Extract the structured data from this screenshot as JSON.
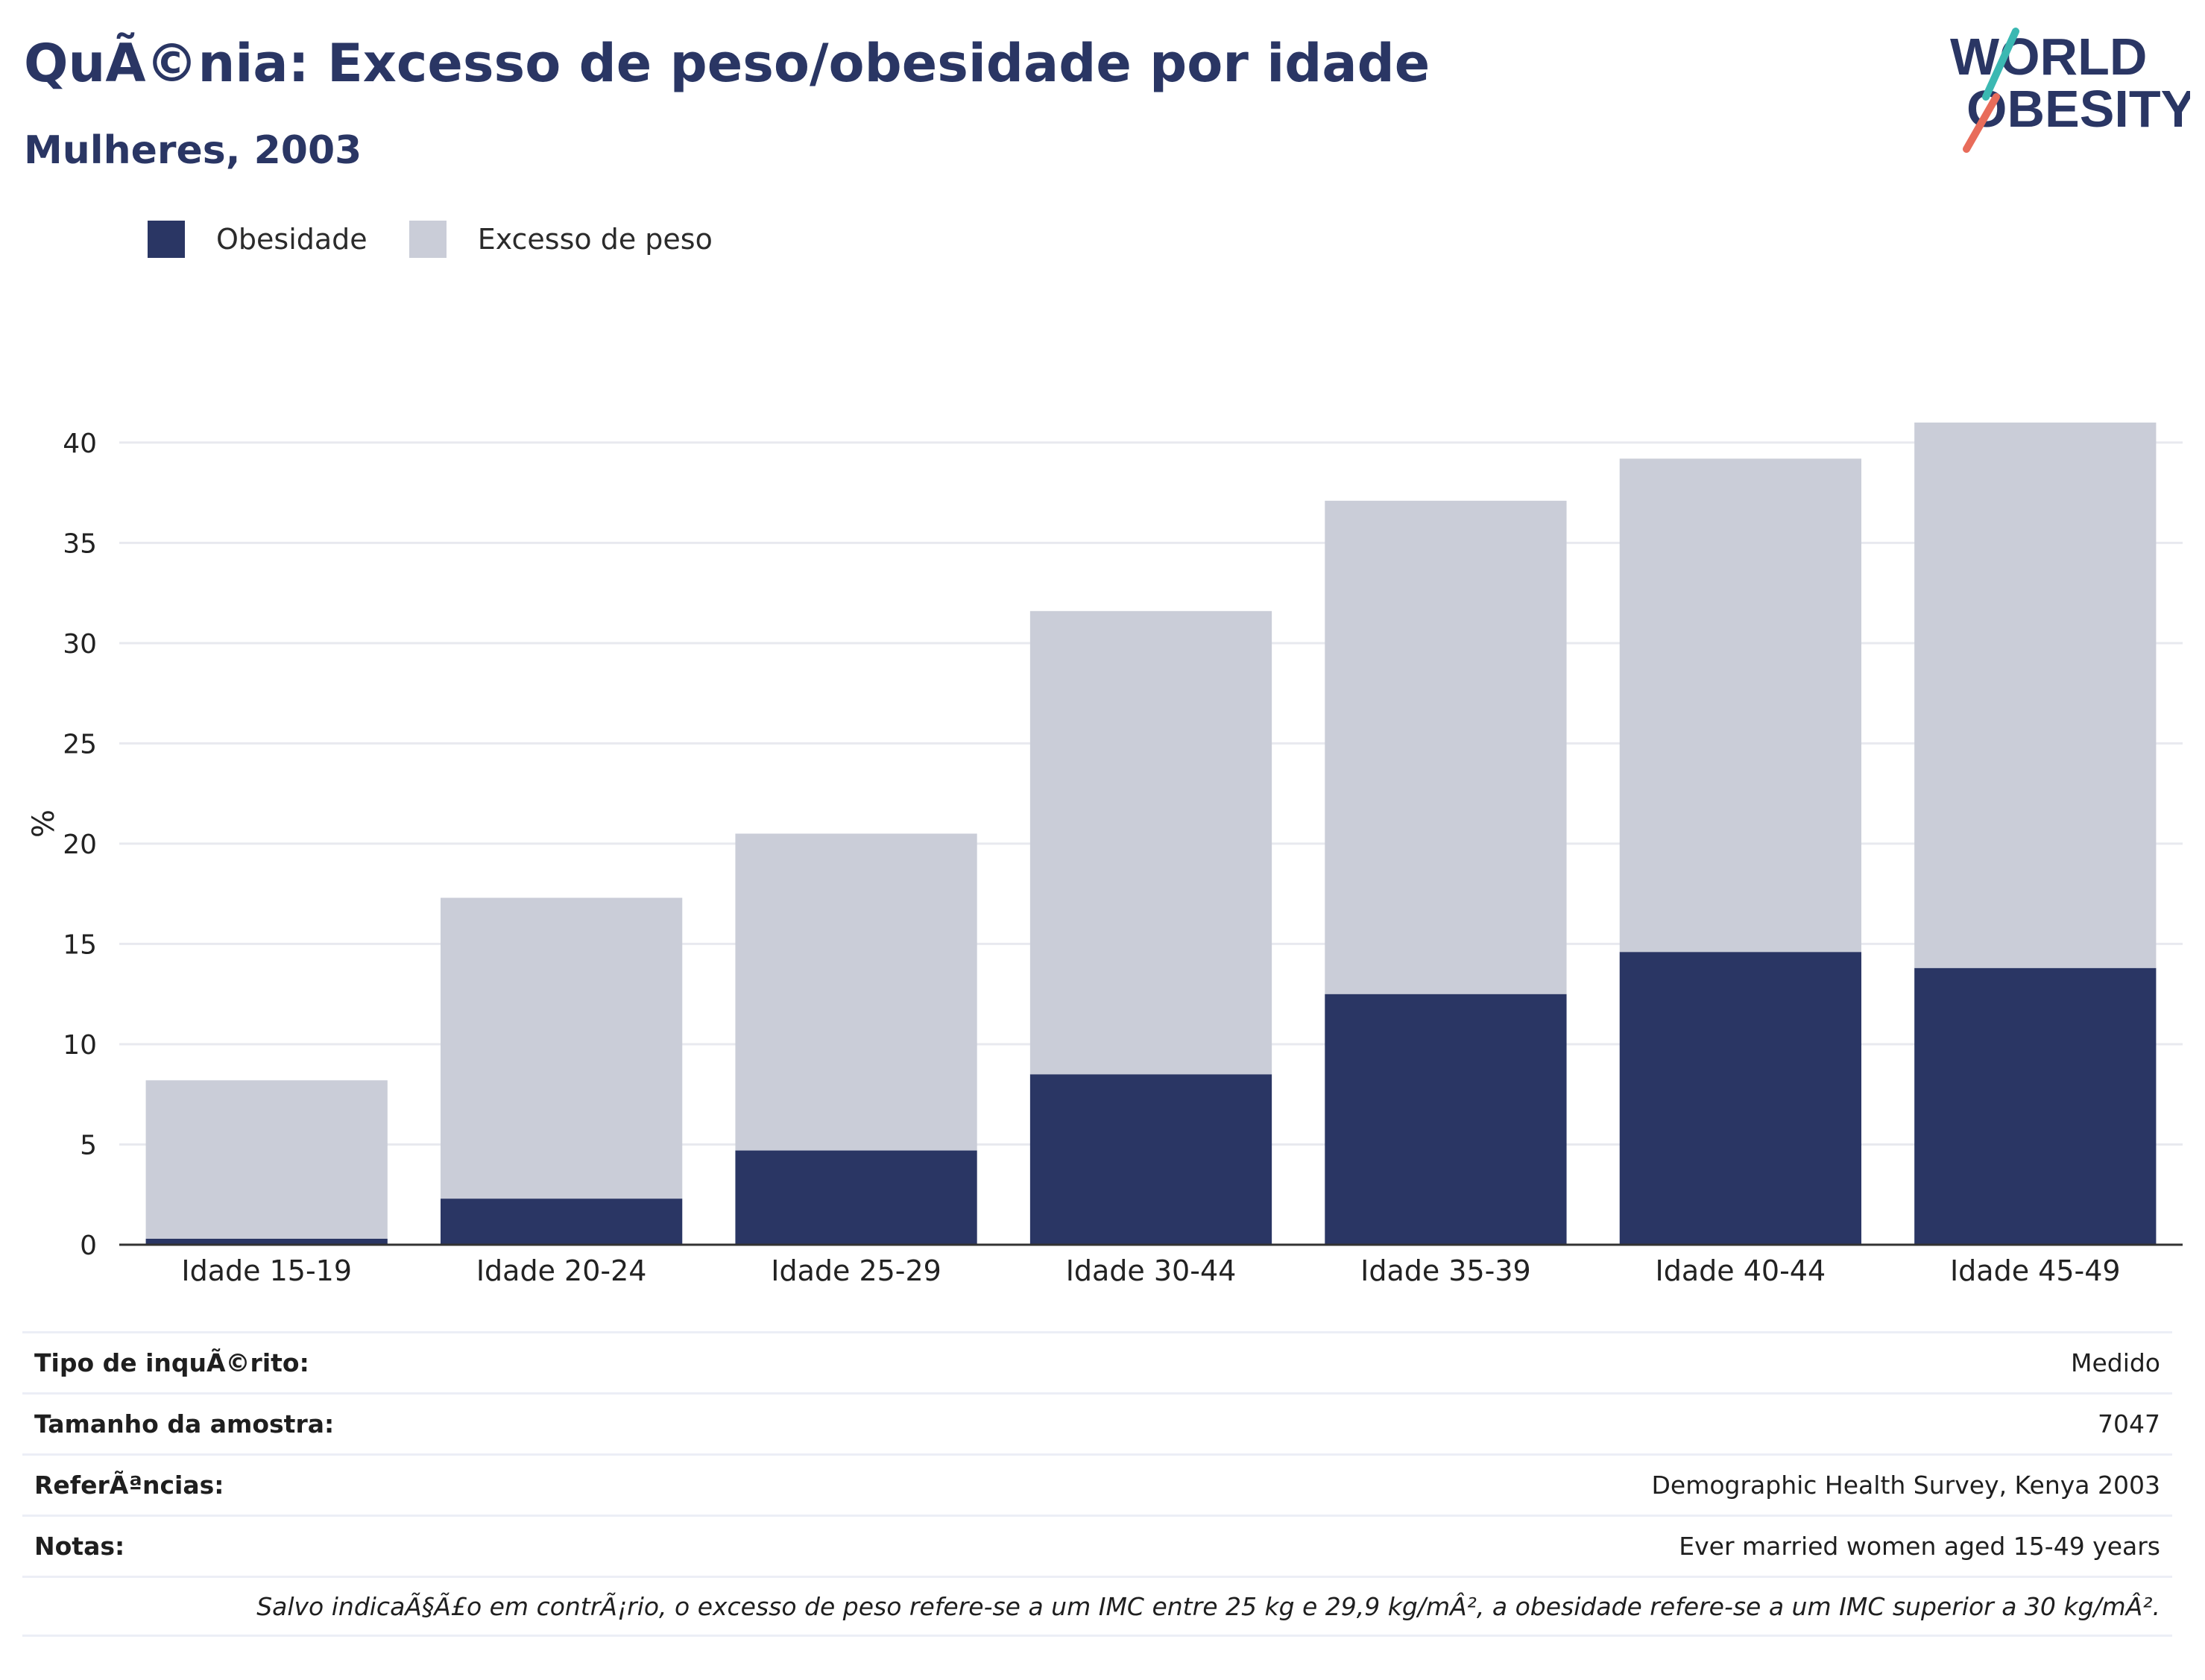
{
  "header": {
    "title": "QuÃ©nia: Excesso de peso/obesidade por idade",
    "subtitle": "Mulheres, 2003"
  },
  "logo": {
    "line1": "WORLD",
    "line2": "OBESITY"
  },
  "colors": {
    "obesity": "#2a3664",
    "overweight": "#cacdd8",
    "text": "#2a3664",
    "grid": "#e8e9ef"
  },
  "chart_data": {
    "type": "bar",
    "stacked": true,
    "categories": [
      "Idade 15-19",
      "Idade 20-24",
      "Idade 25-29",
      "Idade 30-44",
      "Idade 35-39",
      "Idade 40-44",
      "Idade 45-49"
    ],
    "series": [
      {
        "name": "Obesidade",
        "values": [
          0.3,
          2.3,
          4.7,
          8.5,
          12.5,
          14.6,
          13.8
        ]
      },
      {
        "name": "Excesso de peso",
        "values": [
          7.9,
          15.0,
          15.8,
          23.1,
          24.6,
          24.6,
          27.2
        ]
      }
    ],
    "ylabel": "%",
    "ylim": [
      0,
      42
    ],
    "yticks": [
      0,
      5,
      10,
      15,
      20,
      25,
      30,
      35,
      40
    ],
    "grid": true,
    "legend_position": "top-left"
  },
  "info": {
    "rows": [
      {
        "key": "Tipo de inquÃ©rito:",
        "value": "Medido"
      },
      {
        "key": "Tamanho da amostra:",
        "value": "7047"
      },
      {
        "key": "ReferÃªncias:",
        "value": "Demographic Health Survey, Kenya 2003"
      },
      {
        "key": "Notas:",
        "value": "Ever married women aged 15-49 years"
      }
    ],
    "footnote": "Salvo indicaÃ§Ã£o em contrÃ¡rio, o excesso de peso refere-se a um IMC entre 25 kg e 29,9 kg/mÂ², a obesidade refere-se a um IMC superior a 30 kg/mÂ²."
  }
}
